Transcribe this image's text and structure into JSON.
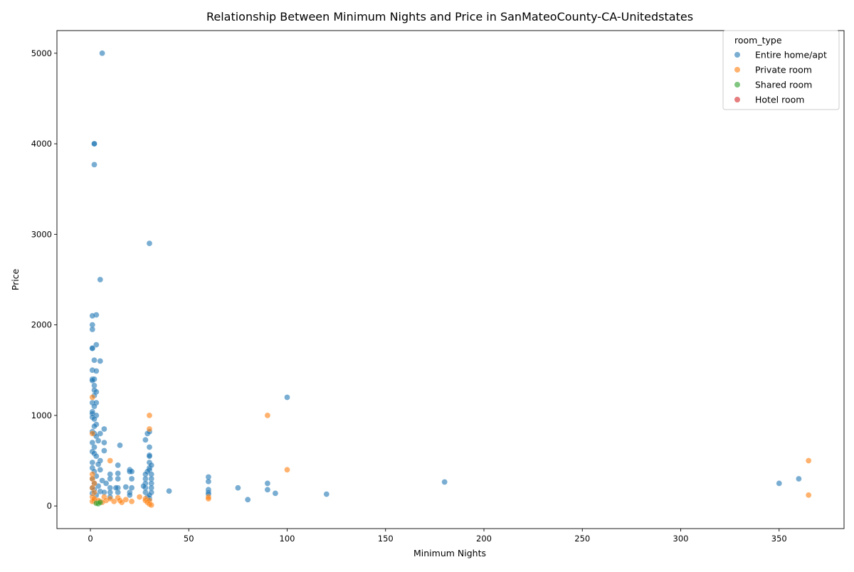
{
  "chart_data": {
    "type": "scatter",
    "title": "Relationship Between Minimum Nights and Price in SanMateoCounty-CA-Unitedstates",
    "xlabel": "Minimum Nights",
    "ylabel": "Price",
    "xlim": [
      -17,
      383
    ],
    "ylim": [
      -250,
      5250
    ],
    "xticks": [
      0,
      50,
      100,
      150,
      200,
      250,
      300,
      350
    ],
    "yticks": [
      0,
      1000,
      2000,
      3000,
      4000,
      5000
    ],
    "grid": false,
    "legend": {
      "title": "room_type",
      "position": "top-right",
      "entries": [
        "Entire home/apt",
        "Private room",
        "Shared room",
        "Hotel room"
      ]
    },
    "series": [
      {
        "name": "Entire home/apt",
        "color": "#1f77b4",
        "points": [
          [
            6,
            5000
          ],
          [
            2,
            4000
          ],
          [
            2,
            4000
          ],
          [
            2,
            3770
          ],
          [
            30,
            2900
          ],
          [
            5,
            2500
          ],
          [
            3,
            2110
          ],
          [
            1,
            2100
          ],
          [
            1,
            2000
          ],
          [
            1,
            1950
          ],
          [
            3,
            1780
          ],
          [
            1,
            1745
          ],
          [
            1,
            1740
          ],
          [
            5,
            1600
          ],
          [
            2,
            1610
          ],
          [
            1,
            1500
          ],
          [
            3,
            1490
          ],
          [
            1,
            1400
          ],
          [
            2,
            1400
          ],
          [
            1,
            1385
          ],
          [
            2,
            1330
          ],
          [
            2,
            1280
          ],
          [
            3,
            1260
          ],
          [
            2,
            1220
          ],
          [
            1,
            1140
          ],
          [
            3,
            1140
          ],
          [
            2,
            1100
          ],
          [
            1,
            1040
          ],
          [
            1,
            1020
          ],
          [
            3,
            1000
          ],
          [
            1,
            980
          ],
          [
            2,
            960
          ],
          [
            3,
            900
          ],
          [
            2,
            880
          ],
          [
            1,
            820
          ],
          [
            2,
            800
          ],
          [
            5,
            800
          ],
          [
            3,
            770
          ],
          [
            7,
            850
          ],
          [
            4,
            720
          ],
          [
            1,
            700
          ],
          [
            7,
            700
          ],
          [
            2,
            650
          ],
          [
            1,
            600
          ],
          [
            2,
            580
          ],
          [
            7,
            610
          ],
          [
            3,
            550
          ],
          [
            5,
            500
          ],
          [
            1,
            480
          ],
          [
            4,
            460
          ],
          [
            1,
            420
          ],
          [
            2,
            380
          ],
          [
            5,
            400
          ],
          [
            3,
            330
          ],
          [
            1,
            300
          ],
          [
            6,
            280
          ],
          [
            2,
            250
          ],
          [
            4,
            220
          ],
          [
            1,
            200
          ],
          [
            8,
            250
          ],
          [
            2,
            180
          ],
          [
            5,
            160
          ],
          [
            1,
            140
          ],
          [
            3,
            120
          ],
          [
            7,
            150
          ],
          [
            10,
            350
          ],
          [
            10,
            300
          ],
          [
            10,
            200
          ],
          [
            10,
            150
          ],
          [
            10,
            100
          ],
          [
            14,
            360
          ],
          [
            14,
            300
          ],
          [
            14,
            450
          ],
          [
            14,
            200
          ],
          [
            14,
            150
          ],
          [
            15,
            670
          ],
          [
            13,
            200
          ],
          [
            18,
            210
          ],
          [
            20,
            400
          ],
          [
            20,
            380
          ],
          [
            20,
            150
          ],
          [
            21,
            200
          ],
          [
            21,
            300
          ],
          [
            21,
            380
          ],
          [
            20,
            120
          ],
          [
            28,
            730
          ],
          [
            29,
            800
          ],
          [
            30,
            820
          ],
          [
            30,
            650
          ],
          [
            30,
            560
          ],
          [
            30,
            550
          ],
          [
            30,
            480
          ],
          [
            30,
            420
          ],
          [
            30,
            400
          ],
          [
            31,
            450
          ],
          [
            31,
            350
          ],
          [
            31,
            300
          ],
          [
            31,
            250
          ],
          [
            29,
            380
          ],
          [
            28,
            350
          ],
          [
            28,
            300
          ],
          [
            28,
            250
          ],
          [
            28,
            200
          ],
          [
            28,
            150
          ],
          [
            29,
            100
          ],
          [
            30,
            80
          ],
          [
            31,
            200
          ],
          [
            31,
            150
          ],
          [
            30,
            120
          ],
          [
            60,
            320
          ],
          [
            60,
            270
          ],
          [
            60,
            180
          ],
          [
            60,
            150
          ],
          [
            60,
            130
          ],
          [
            75,
            200
          ],
          [
            80,
            70
          ],
          [
            90,
            250
          ],
          [
            90,
            180
          ],
          [
            94,
            140
          ],
          [
            100,
            1200
          ],
          [
            120,
            130
          ],
          [
            180,
            265
          ],
          [
            350,
            250
          ],
          [
            360,
            300
          ],
          [
            40,
            165
          ],
          [
            27,
            220
          ]
        ]
      },
      {
        "name": "Private room",
        "color": "#ff7f0e",
        "points": [
          [
            1,
            1200
          ],
          [
            1,
            800
          ],
          [
            1,
            350
          ],
          [
            1,
            300
          ],
          [
            2,
            250
          ],
          [
            1,
            200
          ],
          [
            2,
            150
          ],
          [
            1,
            100
          ],
          [
            2,
            60
          ],
          [
            1,
            50
          ],
          [
            3,
            40
          ],
          [
            5,
            50
          ],
          [
            2,
            80
          ],
          [
            7,
            100
          ],
          [
            8,
            60
          ],
          [
            10,
            500
          ],
          [
            10,
            80
          ],
          [
            12,
            50
          ],
          [
            14,
            90
          ],
          [
            15,
            60
          ],
          [
            16,
            40
          ],
          [
            18,
            70
          ],
          [
            21,
            50
          ],
          [
            25,
            100
          ],
          [
            28,
            80
          ],
          [
            28,
            60
          ],
          [
            29,
            40
          ],
          [
            30,
            1000
          ],
          [
            30,
            850
          ],
          [
            30,
            60
          ],
          [
            30,
            20
          ],
          [
            31,
            10
          ],
          [
            60,
            100
          ],
          [
            60,
            80
          ],
          [
            90,
            1000
          ],
          [
            100,
            400
          ],
          [
            365,
            500
          ],
          [
            365,
            120
          ],
          [
            6,
            40
          ],
          [
            4,
            60
          ]
        ]
      },
      {
        "name": "Shared room",
        "color": "#2ca02c",
        "points": [
          [
            3,
            30
          ],
          [
            4,
            25
          ],
          [
            5,
            40
          ]
        ]
      },
      {
        "name": "Hotel room",
        "color": "#d62728",
        "points": []
      }
    ]
  }
}
